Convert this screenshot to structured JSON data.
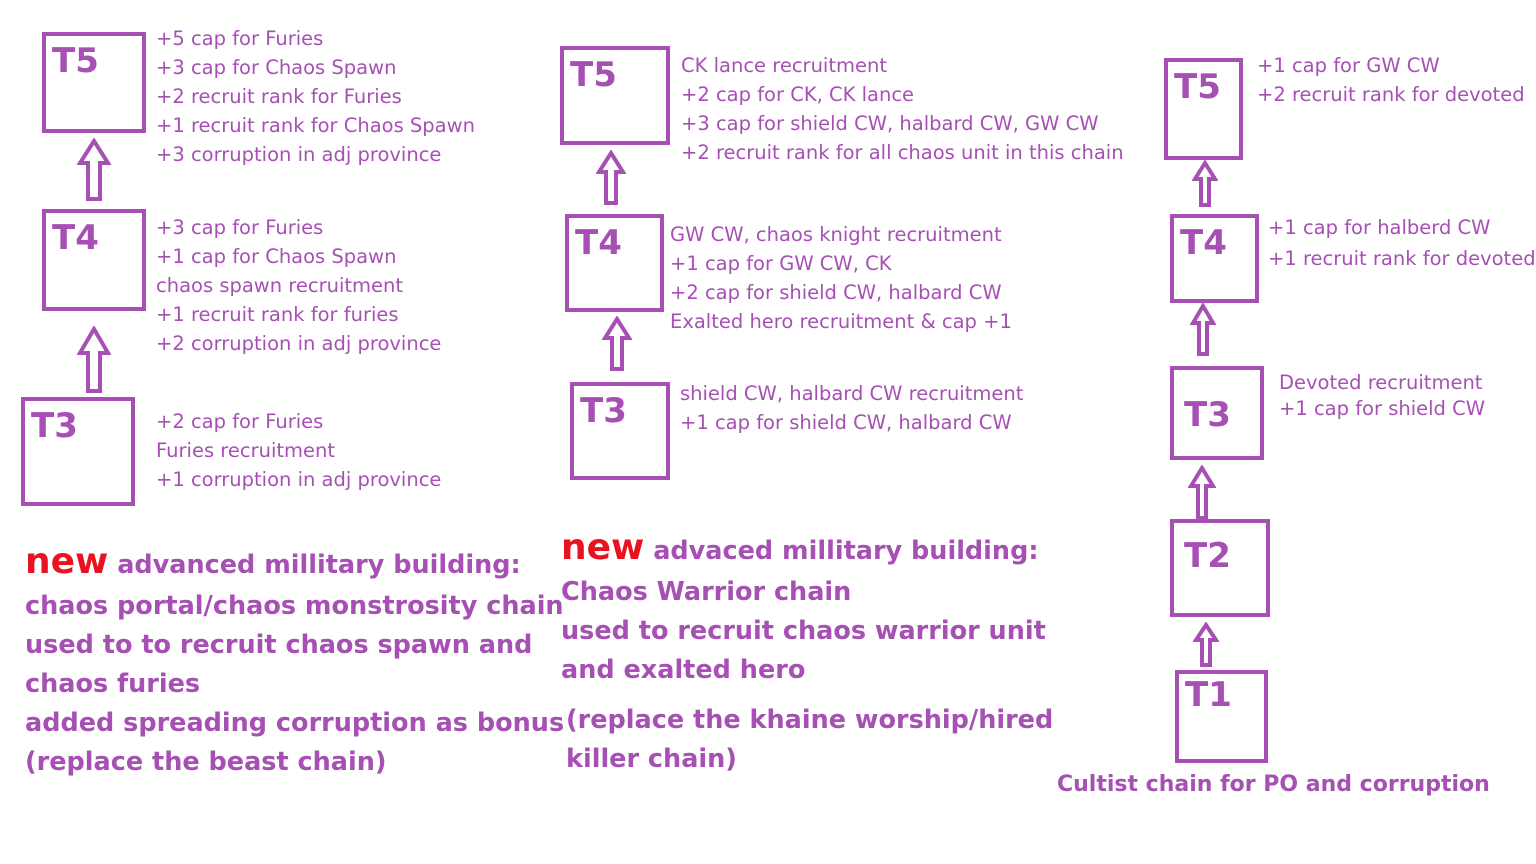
{
  "theme": {
    "primary_color": "#a650b4",
    "accent_color": "#e8131f",
    "background": "#ffffff"
  },
  "chains": [
    {
      "tiers": [
        {
          "label": "T5",
          "effects": [
            "+5 cap for Furies",
            "+3 cap for Chaos Spawn",
            "+2 recruit rank for Furies",
            "+1 recruit rank for Chaos Spawn",
            "+3 corruption in adj province"
          ]
        },
        {
          "label": "T4",
          "effects": [
            "+3 cap for Furies",
            "+1 cap for Chaos Spawn",
            "chaos spawn recruitment",
            "+1 recruit rank for furies",
            "+2 corruption in adj province"
          ]
        },
        {
          "label": "T3",
          "effects": [
            "+2 cap for Furies",
            "Furies recruitment",
            "+1 corruption in adj province"
          ]
        }
      ],
      "description": {
        "new_word": "new",
        "headline": "advanced millitary building:",
        "lines": [
          "chaos portal/chaos monstrosity chain",
          "used to to recruit chaos spawn and",
          "chaos furies",
          "added spreading corruption as bonus",
          "(replace the beast chain)"
        ]
      }
    },
    {
      "tiers": [
        {
          "label": "T5",
          "effects": [
            "CK lance recruitment",
            "+2 cap for CK, CK lance",
            "+3 cap for shield CW, halbard CW, GW CW",
            "+2 recruit rank for all chaos unit in this chain"
          ]
        },
        {
          "label": "T4",
          "effects": [
            "GW CW, chaos knight recruitment",
            "+1 cap for GW CW, CK",
            "+2 cap for shield CW, halbard CW",
            "Exalted hero recruitment & cap +1"
          ]
        },
        {
          "label": "T3",
          "effects": [
            "shield CW, halbard CW recruitment",
            "+1 cap for shield CW, halbard CW"
          ]
        }
      ],
      "description": {
        "new_word": "new",
        "headline": "advaced millitary building:",
        "lines": [
          "Chaos Warrior chain",
          "used to recruit chaos warrior unit",
          "and exalted hero"
        ],
        "note_lines": [
          "(replace the khaine worship/hired",
          "killer chain)"
        ]
      }
    },
    {
      "tiers": [
        {
          "label": "T5",
          "effects": [
            "+1 cap for GW CW",
            "+2 recruit rank for devoted"
          ]
        },
        {
          "label": "T4",
          "effects": [
            "+1 cap for halberd CW",
            "+1 recruit rank for devoted"
          ]
        },
        {
          "label": "T3",
          "effects": [
            "Devoted recruitment",
            "+1 cap for shield CW"
          ]
        },
        {
          "label": "T2",
          "effects": []
        },
        {
          "label": "T1",
          "effects": []
        }
      ],
      "footer": "Cultist chain for PO and corruption"
    }
  ]
}
